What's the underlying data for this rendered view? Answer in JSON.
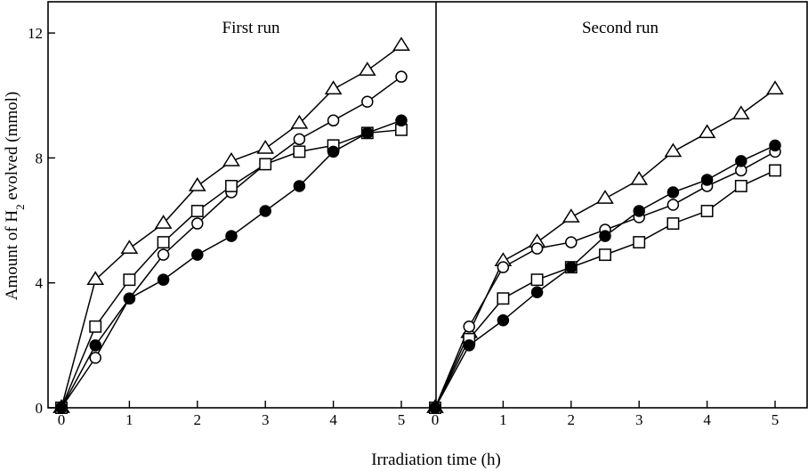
{
  "chart_data": {
    "type": "line",
    "xlabel": "Irradiation time (h)",
    "ylabel": {
      "prefix": "Amount of H",
      "subscript": "2",
      "suffix": " evolved (mmol)"
    },
    "ylim": [
      0,
      13
    ],
    "yticks": [
      0,
      4,
      8,
      12
    ],
    "xlim": [
      -0.1,
      5.4
    ],
    "xticks": [
      0,
      1,
      2,
      3,
      4,
      5
    ],
    "grid": false,
    "panels": [
      {
        "title": "First run",
        "series": [
          {
            "marker": "triangle-open",
            "x": [
              0,
              0.5,
              1,
              1.5,
              2,
              2.5,
              3,
              3.5,
              4,
              4.5,
              5
            ],
            "y": [
              0,
              4.1,
              5.1,
              5.9,
              7.1,
              7.9,
              8.3,
              9.1,
              10.2,
              10.8,
              11.6
            ]
          },
          {
            "marker": "circle-open",
            "x": [
              0,
              0.5,
              1,
              1.5,
              2,
              2.5,
              3,
              3.5,
              4,
              4.5,
              5
            ],
            "y": [
              0,
              1.6,
              3.5,
              4.9,
              5.9,
              6.9,
              7.8,
              8.6,
              9.2,
              9.8,
              10.6
            ]
          },
          {
            "marker": "square-open",
            "x": [
              0,
              0.5,
              1,
              1.5,
              2,
              2.5,
              3,
              3.5,
              4,
              4.5,
              5
            ],
            "y": [
              0,
              2.6,
              4.1,
              5.3,
              6.3,
              7.1,
              7.8,
              8.2,
              8.4,
              8.8,
              8.9
            ]
          },
          {
            "marker": "circle-filled",
            "x": [
              0,
              0.5,
              1,
              1.5,
              2,
              2.5,
              3,
              3.5,
              4,
              4.5,
              5
            ],
            "y": [
              0,
              2.0,
              3.5,
              4.1,
              4.9,
              5.5,
              6.3,
              7.1,
              8.2,
              8.8,
              9.2
            ]
          }
        ]
      },
      {
        "title": "Second run",
        "series": [
          {
            "marker": "triangle-open",
            "x": [
              0,
              0.5,
              1,
              1.5,
              2,
              2.5,
              3,
              3.5,
              4,
              4.5,
              5
            ],
            "y": [
              0,
              2.4,
              4.7,
              5.3,
              6.1,
              6.7,
              7.3,
              8.2,
              8.8,
              9.4,
              10.2
            ]
          },
          {
            "marker": "circle-open",
            "x": [
              0,
              0.5,
              1,
              1.5,
              2,
              2.5,
              3,
              3.5,
              4,
              4.5,
              5
            ],
            "y": [
              0,
              2.6,
              4.5,
              5.1,
              5.3,
              5.7,
              6.1,
              6.5,
              7.1,
              7.6,
              8.2
            ]
          },
          {
            "marker": "square-open",
            "x": [
              0,
              0.5,
              1,
              1.5,
              2,
              2.5,
              3,
              3.5,
              4,
              4.5,
              5
            ],
            "y": [
              0,
              2.2,
              3.5,
              4.1,
              4.5,
              4.9,
              5.3,
              5.9,
              6.3,
              7.1,
              7.6
            ]
          },
          {
            "marker": "circle-filled",
            "x": [
              0,
              0.5,
              1,
              1.5,
              2,
              2.5,
              3,
              3.5,
              4,
              4.5,
              5
            ],
            "y": [
              0,
              2.0,
              2.8,
              3.7,
              4.5,
              5.5,
              6.3,
              6.9,
              7.3,
              7.9,
              8.4
            ]
          }
        ]
      }
    ]
  }
}
